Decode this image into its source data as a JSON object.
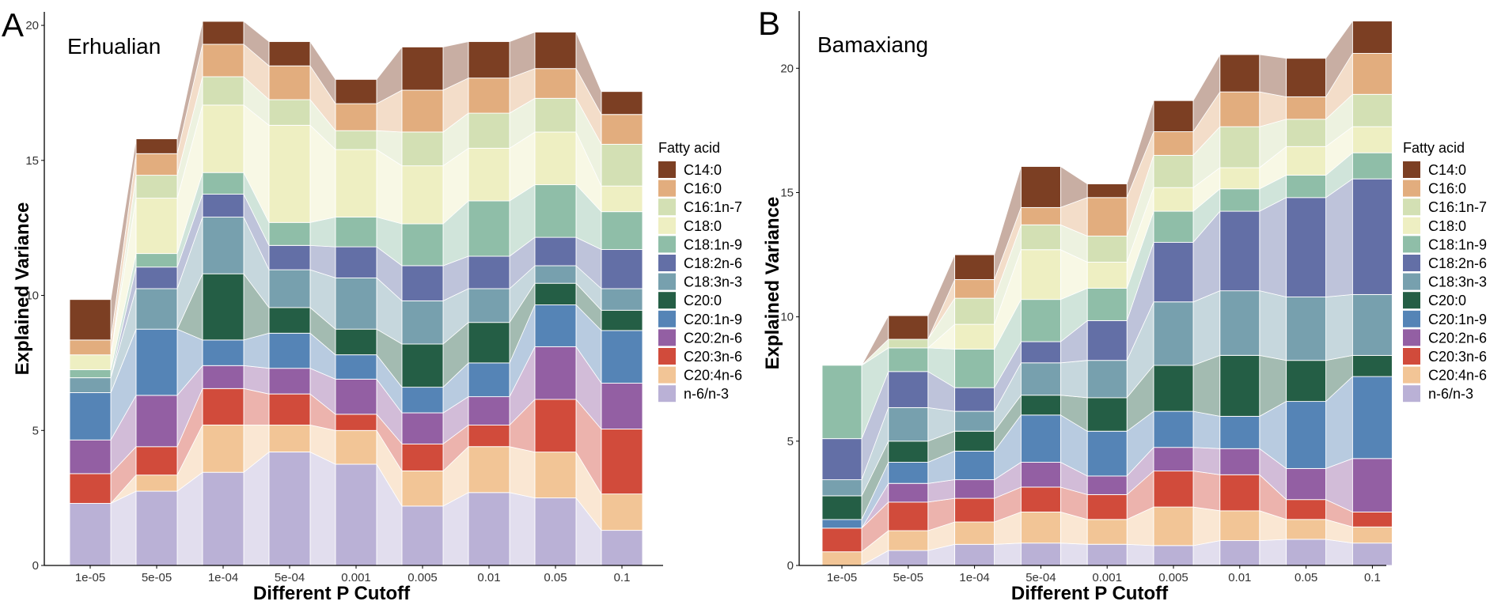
{
  "figure": {
    "xlabel": "Different P Cutoff",
    "ylabel": "Explained Variance",
    "legend_title": "Fatty acid"
  },
  "legend": {
    "labels": [
      "C14:0",
      "C16:0",
      "C16:1n-7",
      "C18:0",
      "C18:1n-9",
      "C18:2n-6",
      "C18:3n-3",
      "C20:0",
      "C20:1n-9",
      "C20:2n-6",
      "C20:3n-6",
      "C20:4n-6",
      "n-6/n-3"
    ]
  },
  "colors": {
    "n-6/n-3": "#bab1d6",
    "C20:4n-6": "#f2c596",
    "C20:3n-6": "#d14b3b",
    "C20:2n-6": "#935fa3",
    "C20:1n-9": "#5584b6",
    "C20:0": "#245e45",
    "C18:3n-3": "#77a0ae",
    "C18:2n-6": "#636fa6",
    "C18:1n-9": "#8fbea8",
    "C18:0": "#eeefc2",
    "C16:1n-7": "#d3e0b4",
    "C16:0": "#e2ad7e",
    "C14:0": "#7c3f23"
  },
  "chart_data": [
    {
      "type": "area",
      "panel": "A",
      "title": "Erhualian",
      "xlabel": "Different P Cutoff",
      "ylabel": "Explained Variance",
      "categories": [
        "1e-05",
        "5e-05",
        "1e-04",
        "5e-04",
        "0.001",
        "0.005",
        "0.01",
        "0.05",
        "0.1"
      ],
      "ylim": [
        0,
        20.5
      ],
      "yticks": [
        0,
        5,
        10,
        15,
        20
      ],
      "legend_position": "right",
      "series": [
        {
          "name": "n-6/n-3",
          "values": [
            2.3,
            2.75,
            3.45,
            4.2,
            3.75,
            2.2,
            2.7,
            2.5,
            1.3
          ]
        },
        {
          "name": "C20:4n-6",
          "values": [
            0.0,
            0.6,
            1.75,
            1.0,
            1.25,
            1.3,
            1.7,
            1.7,
            1.35
          ]
        },
        {
          "name": "C20:3n-6",
          "values": [
            1.1,
            1.05,
            1.35,
            1.15,
            0.6,
            1.0,
            0.8,
            1.95,
            2.4
          ]
        },
        {
          "name": "C20:2n-6",
          "values": [
            1.25,
            1.9,
            0.85,
            0.95,
            1.3,
            1.15,
            1.05,
            1.95,
            1.7
          ]
        },
        {
          "name": "C20:1n-9",
          "values": [
            1.75,
            2.45,
            0.95,
            1.3,
            0.9,
            0.95,
            1.25,
            1.55,
            1.95
          ]
        },
        {
          "name": "C20:0",
          "values": [
            0.0,
            0.0,
            2.45,
            0.95,
            0.95,
            1.6,
            1.5,
            0.8,
            0.75
          ]
        },
        {
          "name": "C18:3n-3",
          "values": [
            0.55,
            1.5,
            2.1,
            1.4,
            1.9,
            1.6,
            1.25,
            0.65,
            0.8
          ]
        },
        {
          "name": "C18:2n-6",
          "values": [
            0.0,
            0.8,
            0.85,
            0.9,
            1.15,
            1.3,
            1.2,
            1.05,
            1.45
          ]
        },
        {
          "name": "C18:1n-9",
          "values": [
            0.3,
            0.5,
            0.8,
            0.85,
            1.1,
            1.55,
            2.05,
            1.95,
            1.4
          ]
        },
        {
          "name": "C18:0",
          "values": [
            0.55,
            2.05,
            2.5,
            3.6,
            2.5,
            2.15,
            1.95,
            1.95,
            0.95
          ]
        },
        {
          "name": "C16:1n-7",
          "values": [
            0.0,
            0.85,
            1.05,
            0.95,
            0.7,
            1.25,
            1.3,
            1.25,
            1.55
          ]
        },
        {
          "name": "C16:0",
          "values": [
            0.55,
            0.8,
            1.2,
            1.25,
            1.0,
            1.55,
            1.3,
            1.1,
            1.1
          ]
        },
        {
          "name": "C14:0",
          "values": [
            1.5,
            0.55,
            0.85,
            0.9,
            0.9,
            1.6,
            1.35,
            1.35,
            0.85
          ]
        }
      ]
    },
    {
      "type": "area",
      "panel": "B",
      "title": "Bamaxiang",
      "xlabel": "Different P Cutoff",
      "ylabel": "Explained Variance",
      "categories": [
        "1e-05",
        "5e-05",
        "1e-04",
        "5e-04",
        "0.001",
        "0.005",
        "0.01",
        "0.05",
        "0.1"
      ],
      "ylim": [
        0,
        22.3
      ],
      "yticks": [
        0,
        5,
        10,
        15,
        20
      ],
      "legend_position": "right",
      "series": [
        {
          "name": "n-6/n-3",
          "values": [
            0.0,
            0.6,
            0.85,
            0.9,
            0.85,
            0.8,
            1.0,
            1.05,
            0.9
          ]
        },
        {
          "name": "C20:4n-6",
          "values": [
            0.55,
            0.8,
            0.9,
            1.25,
            1.0,
            1.55,
            1.2,
            0.8,
            0.65
          ]
        },
        {
          "name": "C20:3n-6",
          "values": [
            0.95,
            1.15,
            0.95,
            1.0,
            1.0,
            1.45,
            1.45,
            0.8,
            0.6
          ]
        },
        {
          "name": "C20:2n-6",
          "values": [
            0.0,
            0.75,
            0.75,
            1.0,
            0.75,
            0.95,
            1.05,
            1.25,
            2.15
          ]
        },
        {
          "name": "C20:1n-9",
          "values": [
            0.35,
            0.85,
            1.15,
            1.9,
            1.8,
            1.45,
            1.3,
            2.7,
            3.3
          ]
        },
        {
          "name": "C20:0",
          "values": [
            0.95,
            0.85,
            0.8,
            0.8,
            1.35,
            1.85,
            2.45,
            1.65,
            0.85
          ]
        },
        {
          "name": "C18:3n-3",
          "values": [
            0.65,
            1.35,
            0.8,
            1.3,
            1.5,
            2.55,
            2.6,
            2.55,
            2.45
          ]
        },
        {
          "name": "C18:2n-6",
          "values": [
            1.65,
            1.45,
            0.95,
            0.85,
            1.6,
            2.4,
            3.2,
            4.0,
            4.65
          ]
        },
        {
          "name": "C18:1n-9",
          "values": [
            2.95,
            0.95,
            1.55,
            1.7,
            1.3,
            1.25,
            0.9,
            0.9,
            1.05
          ]
        },
        {
          "name": "C18:0",
          "values": [
            0.0,
            0.0,
            1.0,
            2.0,
            1.05,
            0.95,
            0.85,
            1.15,
            1.05
          ]
        },
        {
          "name": "C16:1n-7",
          "values": [
            0.0,
            0.35,
            1.05,
            1.0,
            1.05,
            1.3,
            1.65,
            1.1,
            1.3
          ]
        },
        {
          "name": "C16:0",
          "values": [
            0.0,
            0.0,
            0.75,
            0.7,
            1.55,
            0.95,
            1.4,
            0.9,
            1.65
          ]
        },
        {
          "name": "C14:0",
          "values": [
            0.0,
            0.95,
            1.0,
            1.65,
            0.55,
            1.25,
            1.5,
            1.55,
            1.3
          ]
        }
      ]
    }
  ]
}
